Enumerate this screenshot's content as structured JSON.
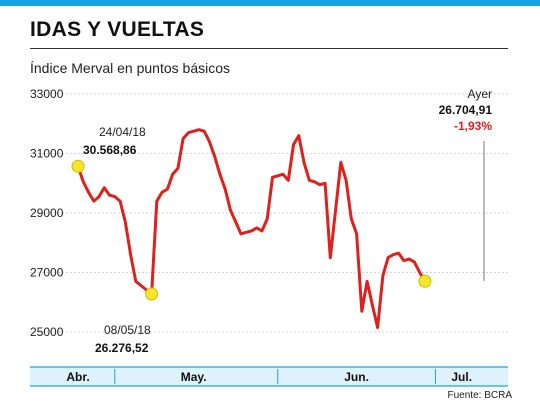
{
  "header": {
    "title": "IDAS Y VUELTAS",
    "subtitle": "Índice Merval en puntos básicos",
    "source": "Fuente: BCRA"
  },
  "colors": {
    "accent_bar": "#1aa3dc",
    "axis_band": "#dff1fa",
    "line": "#e0201b",
    "highlight": "#f5e62a",
    "negative": "#e0201b"
  },
  "chart_data": {
    "type": "line",
    "title": "IDAS Y VUELTAS",
    "subtitle": "Índice Merval en puntos básicos",
    "ylim": [
      25000,
      33000
    ],
    "yticks": [
      25000,
      27000,
      29000,
      31000,
      33000
    ],
    "ytick_labels": [
      "25000",
      "27000",
      "29000",
      "31000",
      "33000"
    ],
    "grid": true,
    "x_start": "2018-04-24",
    "x_end": "2018-07-11",
    "month_boundaries": [
      "2018-05-01",
      "2018-06-01",
      "2018-07-01"
    ],
    "month_labels": [
      {
        "label": "Abr.",
        "center": "2018-04-24"
      },
      {
        "label": "May.",
        "center": "2018-05-16"
      },
      {
        "label": "Jun.",
        "center": "2018-06-16"
      },
      {
        "label": "Jul.",
        "center": "2018-07-06"
      }
    ],
    "series": [
      {
        "values": [
          [
            "2018-04-24",
            30569
          ],
          [
            "2018-04-25",
            30050
          ],
          [
            "2018-04-26",
            29700
          ],
          [
            "2018-04-27",
            29400
          ],
          [
            "2018-04-28",
            29550
          ],
          [
            "2018-04-29",
            29850
          ],
          [
            "2018-04-30",
            29600
          ],
          [
            "2018-05-01",
            29550
          ],
          [
            "2018-05-02",
            29400
          ],
          [
            "2018-05-03",
            28700
          ],
          [
            "2018-05-04",
            27600
          ],
          [
            "2018-05-05",
            26700
          ],
          [
            "2018-05-08",
            26277
          ],
          [
            "2018-05-09",
            29400
          ],
          [
            "2018-05-10",
            29700
          ],
          [
            "2018-05-11",
            29800
          ],
          [
            "2018-05-12",
            30300
          ],
          [
            "2018-05-13",
            30500
          ],
          [
            "2018-05-14",
            31500
          ],
          [
            "2018-05-15",
            31700
          ],
          [
            "2018-05-16",
            31750
          ],
          [
            "2018-05-17",
            31800
          ],
          [
            "2018-05-18",
            31750
          ],
          [
            "2018-05-19",
            31400
          ],
          [
            "2018-05-20",
            30900
          ],
          [
            "2018-05-21",
            30300
          ],
          [
            "2018-05-22",
            29800
          ],
          [
            "2018-05-23",
            29100
          ],
          [
            "2018-05-24",
            28700
          ],
          [
            "2018-05-25",
            28300
          ],
          [
            "2018-05-26",
            28350
          ],
          [
            "2018-05-27",
            28400
          ],
          [
            "2018-05-28",
            28500
          ],
          [
            "2018-05-29",
            28400
          ],
          [
            "2018-05-30",
            28800
          ],
          [
            "2018-05-31",
            30200
          ],
          [
            "2018-06-01",
            30250
          ],
          [
            "2018-06-02",
            30300
          ],
          [
            "2018-06-03",
            30100
          ],
          [
            "2018-06-04",
            31300
          ],
          [
            "2018-06-05",
            31600
          ],
          [
            "2018-06-06",
            30700
          ],
          [
            "2018-06-07",
            30100
          ],
          [
            "2018-06-08",
            30050
          ],
          [
            "2018-06-09",
            29950
          ],
          [
            "2018-06-10",
            30000
          ],
          [
            "2018-06-11",
            27500
          ],
          [
            "2018-06-12",
            29100
          ],
          [
            "2018-06-13",
            30700
          ],
          [
            "2018-06-14",
            30100
          ],
          [
            "2018-06-15",
            28800
          ],
          [
            "2018-06-16",
            28300
          ],
          [
            "2018-06-17",
            25700
          ],
          [
            "2018-06-18",
            26700
          ],
          [
            "2018-06-19",
            25900
          ],
          [
            "2018-06-20",
            25150
          ],
          [
            "2018-06-21",
            26900
          ],
          [
            "2018-06-22",
            27500
          ],
          [
            "2018-06-23",
            27600
          ],
          [
            "2018-06-24",
            27650
          ],
          [
            "2018-06-25",
            27400
          ],
          [
            "2018-06-26",
            27450
          ],
          [
            "2018-06-27",
            27350
          ],
          [
            "2018-06-28",
            27000
          ],
          [
            "2018-06-29",
            26705
          ]
        ]
      }
    ],
    "annotations": [
      {
        "date": "24/04/18",
        "value": "30.568,86"
      },
      {
        "date": "08/05/18",
        "value": "26.276,52"
      },
      {
        "date": "Ayer",
        "value": "26.704,91",
        "change": "-1,93%"
      }
    ]
  }
}
